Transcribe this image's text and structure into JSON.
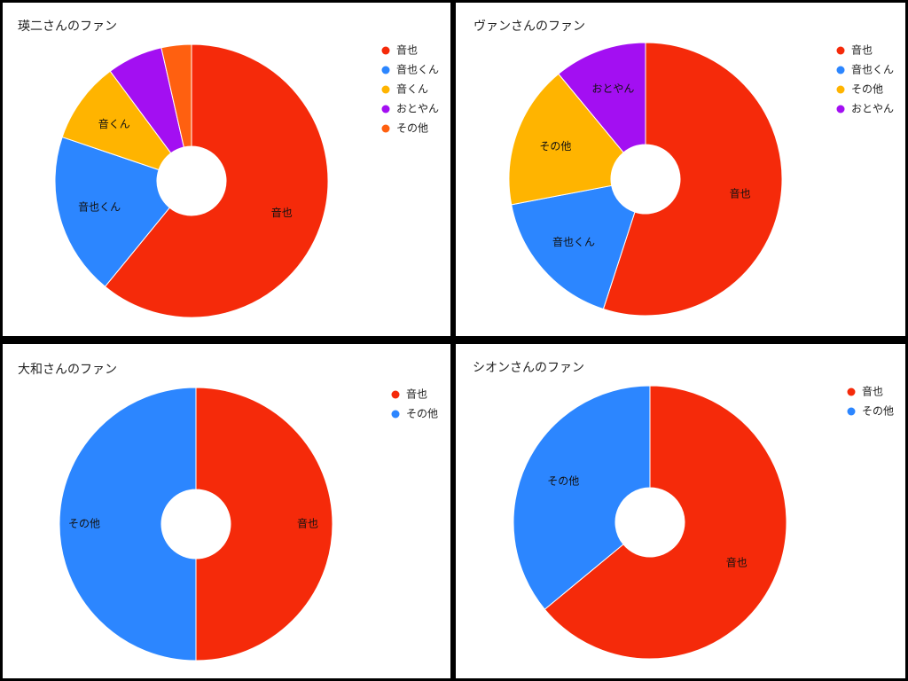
{
  "chart_data": [
    {
      "type": "pie",
      "title": "瑛二さんのファン",
      "legend_position": "right",
      "donut": true,
      "categories": [
        "音也",
        "音也くん",
        "音くん",
        "おとやん",
        "その他"
      ],
      "values": [
        60,
        19,
        9.5,
        6.5,
        3.5
      ],
      "colors": [
        "#f52a0a",
        "#2c86ff",
        "#ffb400",
        "#a30ff2",
        "#ff6010"
      ],
      "slice_labels": [
        "音也",
        "音也くん",
        "音くん",
        "",
        ""
      ]
    },
    {
      "type": "pie",
      "title": "ヴァンさんのファン",
      "legend_position": "right",
      "donut": true,
      "categories": [
        "音也",
        "音也くん",
        "その他",
        "おとやん"
      ],
      "values": [
        55,
        17,
        17,
        11
      ],
      "colors": [
        "#f52a0a",
        "#2c86ff",
        "#ffb400",
        "#a30ff2"
      ],
      "slice_labels": [
        "音也",
        "音也くん",
        "その他",
        "おとやん"
      ]
    },
    {
      "type": "pie",
      "title": "大和さんのファン",
      "legend_position": "right",
      "donut": true,
      "categories": [
        "音也",
        "その他"
      ],
      "values": [
        50,
        50
      ],
      "colors": [
        "#f52a0a",
        "#2c86ff"
      ],
      "slice_labels": [
        "音也",
        "その他"
      ]
    },
    {
      "type": "pie",
      "title": "シオンさんのファン",
      "legend_position": "right",
      "donut": true,
      "categories": [
        "音也",
        "その他"
      ],
      "values": [
        64,
        36
      ],
      "colors": [
        "#f52a0a",
        "#2c86ff"
      ],
      "slice_labels": [
        "音也",
        "その他"
      ]
    }
  ]
}
